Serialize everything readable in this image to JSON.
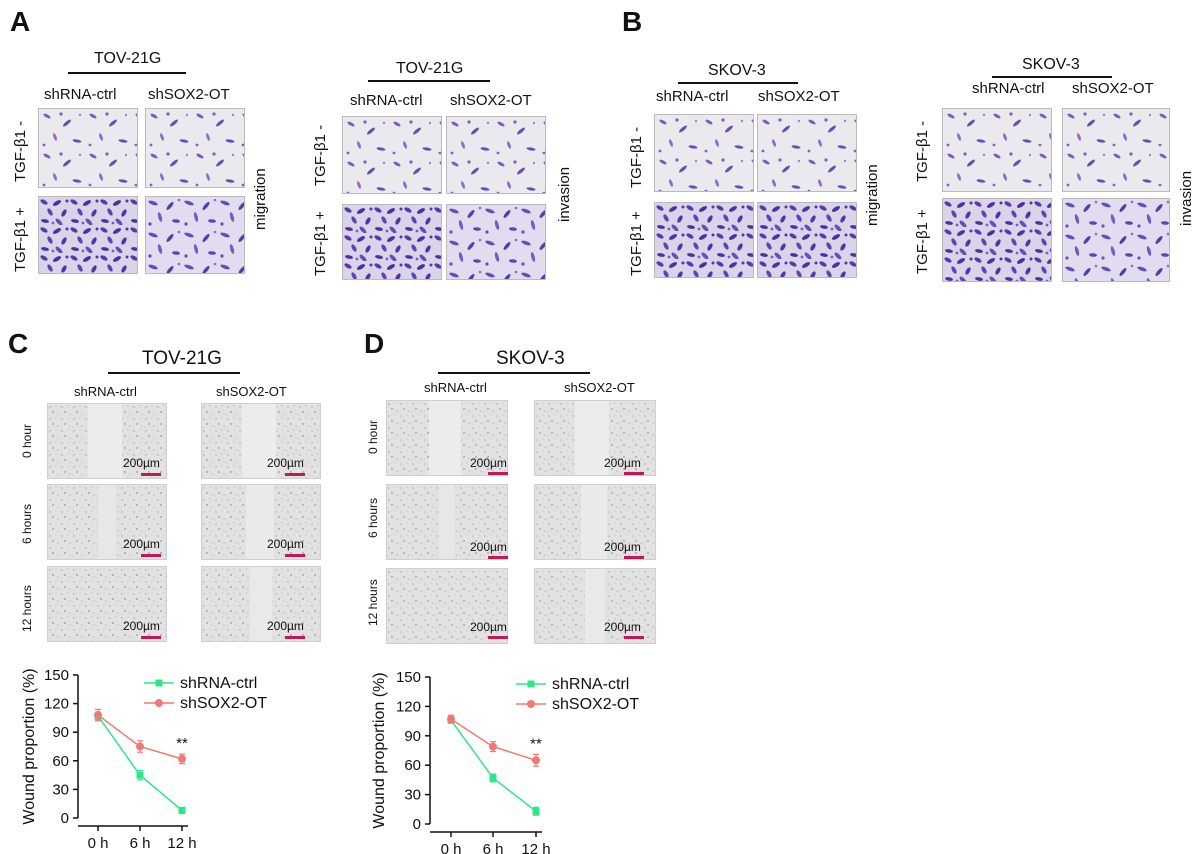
{
  "panels": {
    "A": "A",
    "B": "B",
    "C": "C",
    "D": "D"
  },
  "panelA": {
    "left": {
      "cell": "TOV-21G",
      "col1": "shRNA-ctrl",
      "col2": "shSOX2-OT",
      "row1": "TGF-β1 -",
      "row2": "TGF-β1 +",
      "side": "migration"
    },
    "right": {
      "cell": "TOV-21G",
      "col1": "shRNA-ctrl",
      "col2": "shSOX2-OT",
      "row1": "TGF-β1 -",
      "row2": "TGF-β1 +",
      "side": "invasion"
    }
  },
  "panelB": {
    "left": {
      "cell": "SKOV-3",
      "col1": "shRNA-ctrl",
      "col2": "shSOX2-OT",
      "row1": "TGF-β1 -",
      "row2": "TGF-β1 +",
      "side": "migration"
    },
    "right": {
      "cell": "SKOV-3",
      "col1": "shRNA-ctrl",
      "col2": "shSOX2-OT",
      "row1": "TGF-β1 -",
      "row2": "TGF-β1 +",
      "side": "invasion"
    }
  },
  "panelC": {
    "cell": "TOV-21G",
    "col1": "shRNA-ctrl",
    "col2": "shSOX2-OT",
    "rows": [
      "0 hour",
      "6 hours",
      "12 hours"
    ],
    "scale": "200µm"
  },
  "panelD": {
    "cell": "SKOV-3",
    "col1": "shRNA-ctrl",
    "col2": "shSOX2-OT",
    "rows": [
      "0 hour",
      "6 hours",
      "12 hours"
    ],
    "scale": "200µm"
  },
  "colors": {
    "ctrl": "#2fe58c",
    "sh": "#ef7a72",
    "crystal": "#6a4bb8",
    "scalebar": "#c2185b"
  },
  "chart_data": [
    {
      "type": "line",
      "panel": "C",
      "categories": [
        "0 h",
        "6 h",
        "12 h"
      ],
      "ylabel": "Wound proportion (%)",
      "ylim": [
        0,
        150
      ],
      "yticks": [
        0,
        30,
        60,
        90,
        120,
        150
      ],
      "series": [
        {
          "name": "shRNA-ctrl",
          "values": [
            107,
            45,
            8
          ],
          "errors": [
            4,
            5,
            3
          ]
        },
        {
          "name": "shSOX2-OT",
          "values": [
            108,
            75,
            62
          ],
          "errors": [
            6,
            6,
            5
          ]
        }
      ],
      "annotation": "**"
    },
    {
      "type": "line",
      "panel": "D",
      "categories": [
        "0 h",
        "6 h",
        "12 h"
      ],
      "ylabel": "Wound proportion (%)",
      "ylim": [
        0,
        150
      ],
      "yticks": [
        0,
        30,
        60,
        90,
        120,
        150
      ],
      "series": [
        {
          "name": "shRNA-ctrl",
          "values": [
            106,
            47,
            13
          ],
          "errors": [
            3,
            4,
            4
          ]
        },
        {
          "name": "shSOX2-OT",
          "values": [
            107,
            79,
            65
          ],
          "errors": [
            4,
            5,
            6
          ]
        }
      ],
      "annotation": "**"
    }
  ]
}
